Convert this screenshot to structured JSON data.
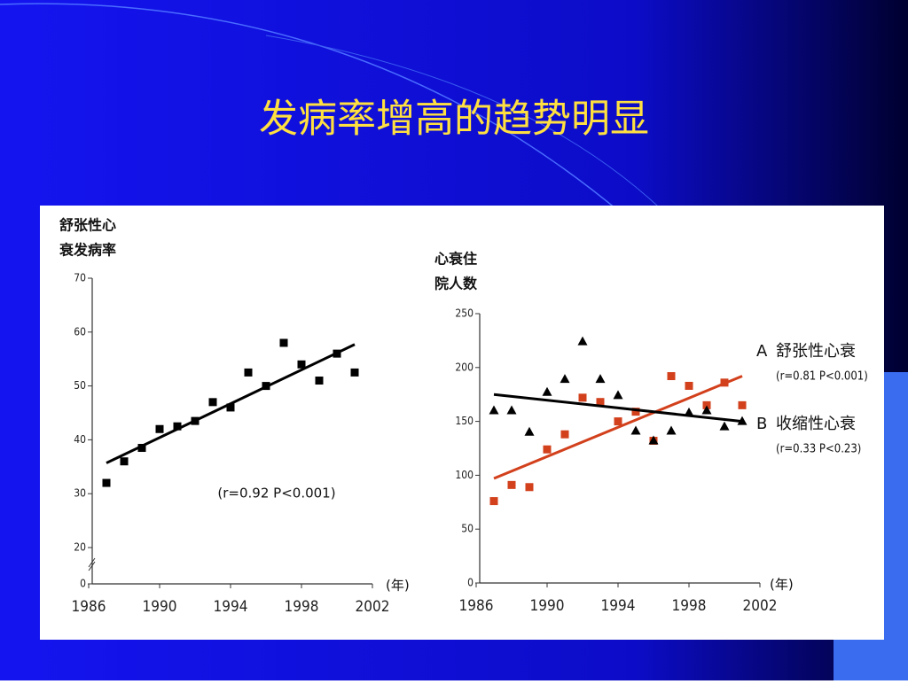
{
  "title": "发病率增高的趋势明显",
  "chart_data": [
    {
      "type": "scatter",
      "ylabel": [
        "舒张性心",
        "衰发病率"
      ],
      "xunit": "(年)",
      "annotation": "(r=0.92 P<0.001)",
      "xlim": [
        1986,
        2002
      ],
      "xticks": [
        1986,
        1990,
        1994,
        1998,
        2002
      ],
      "ylim": [
        20,
        70
      ],
      "yticks": [
        0,
        20,
        30,
        40,
        50,
        60,
        70
      ],
      "axis_break": true,
      "series": [
        {
          "color": "#000000",
          "marker": "square",
          "x": [
            1987,
            1988,
            1989,
            1990,
            1991,
            1992,
            1993,
            1994,
            1995,
            1996,
            1997,
            1998,
            1999,
            2000,
            2001
          ],
          "values": [
            32,
            36,
            38.5,
            42,
            42.5,
            43.5,
            47,
            46,
            52.5,
            50,
            58,
            54,
            51,
            56,
            52.5
          ],
          "trend": {
            "x": [
              1987,
              2001
            ],
            "values": [
              35.7,
              57.7
            ]
          }
        }
      ]
    },
    {
      "type": "scatter",
      "ylabel": [
        "心衰住",
        "院人数"
      ],
      "xunit": "(年)",
      "xlim": [
        1986,
        2002
      ],
      "xticks": [
        1986,
        1990,
        1994,
        1998,
        2002
      ],
      "ylim": [
        0,
        250
      ],
      "yticks": [
        0,
        50,
        100,
        150,
        200,
        250
      ],
      "series": [
        {
          "label": "A",
          "name": "舒张性心衰",
          "stat": "(r=0.81 P<0.001)",
          "color": "#d2401c",
          "marker": "square",
          "x": [
            1987,
            1988,
            1989,
            1990,
            1991,
            1992,
            1993,
            1994,
            1995,
            1996,
            1997,
            1998,
            1999,
            2000,
            2001
          ],
          "values": [
            76,
            91,
            89,
            124,
            138,
            172,
            168,
            150,
            159,
            132,
            192,
            183,
            165,
            186,
            165
          ],
          "trend": {
            "x": [
              1987,
              2001
            ],
            "values": [
              97,
              192
            ]
          }
        },
        {
          "label": "B",
          "name": "收缩性心衰",
          "stat": "(r=0.33 P<0.23)",
          "color": "#000000",
          "marker": "triangle",
          "x": [
            1987,
            1988,
            1989,
            1990,
            1991,
            1992,
            1993,
            1994,
            1995,
            1996,
            1997,
            1998,
            1999,
            2000,
            2001
          ],
          "values": [
            160,
            160,
            140,
            177,
            189,
            224,
            189,
            174,
            141,
            132,
            141,
            158,
            160,
            145,
            150
          ],
          "trend": {
            "x": [
              1987,
              2001
            ],
            "values": [
              175,
              150
            ]
          }
        }
      ]
    }
  ]
}
